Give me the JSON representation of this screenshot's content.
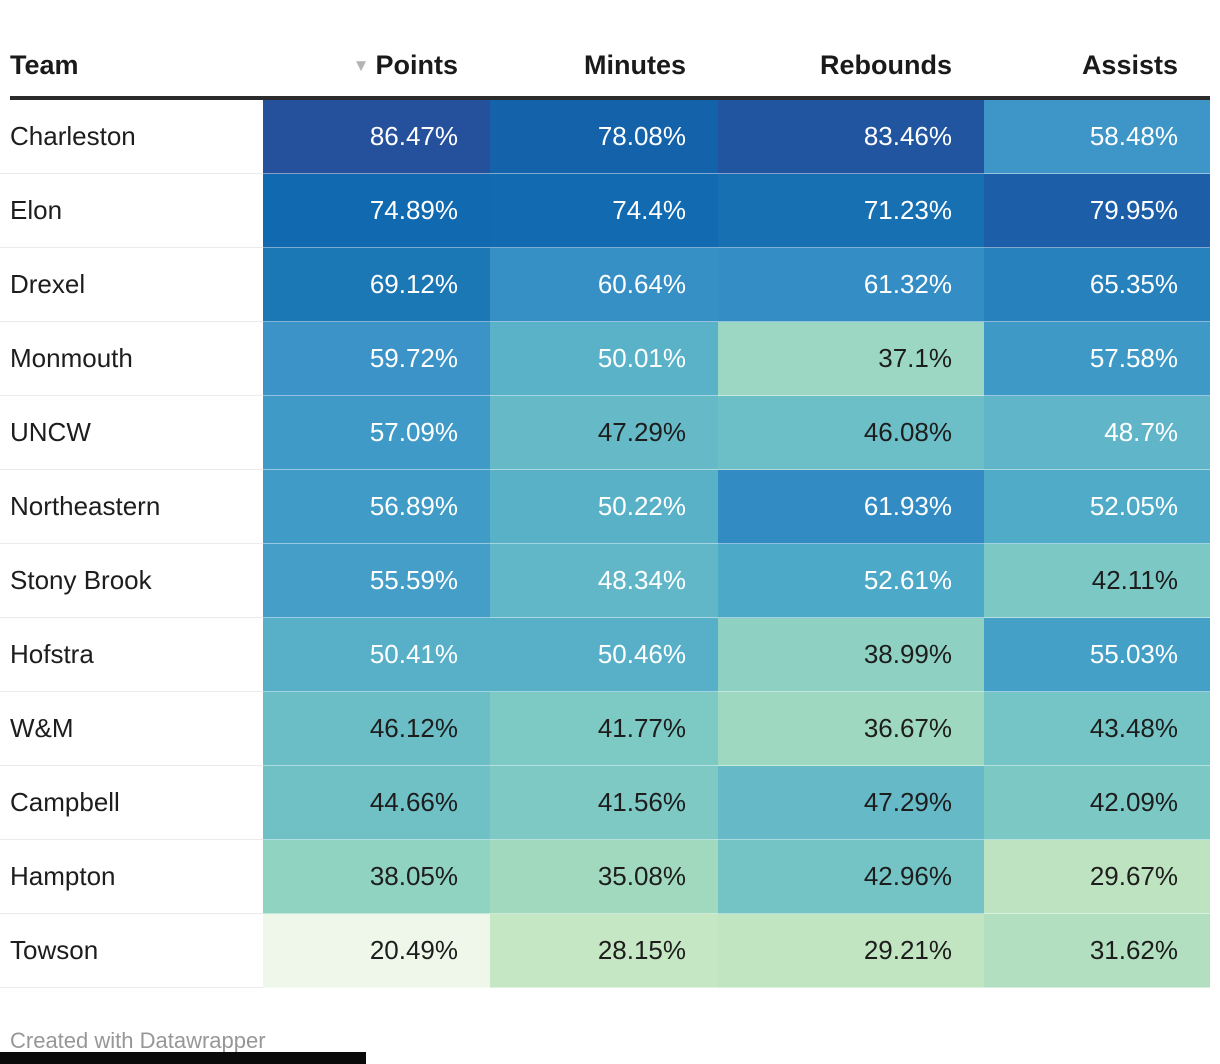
{
  "table": {
    "columns": [
      {
        "key": "team",
        "label": "Team",
        "sorted": false
      },
      {
        "key": "points",
        "label": "Points",
        "sorted": true
      },
      {
        "key": "minutes",
        "label": "Minutes",
        "sorted": false
      },
      {
        "key": "rebounds",
        "label": "Rebounds",
        "sorted": false
      },
      {
        "key": "assists",
        "label": "Assists",
        "sorted": false
      }
    ],
    "sort_icon": "sort-descending-triangle",
    "sort_icon_glyph": "▼",
    "rows": [
      {
        "team": "Charleston",
        "cells": [
          {
            "text": "86.47%",
            "bg": "#25509b",
            "fg": "#ffffff"
          },
          {
            "text": "78.08%",
            "bg": "#1463aa",
            "fg": "#ffffff"
          },
          {
            "text": "83.46%",
            "bg": "#21559f",
            "fg": "#ffffff"
          },
          {
            "text": "58.48%",
            "bg": "#3d96c7",
            "fg": "#ffffff"
          }
        ]
      },
      {
        "team": "Elon",
        "cells": [
          {
            "text": "74.89%",
            "bg": "#1169af",
            "fg": "#ffffff"
          },
          {
            "text": "74.4%",
            "bg": "#126ab0",
            "fg": "#ffffff"
          },
          {
            "text": "71.23%",
            "bg": "#1770b2",
            "fg": "#ffffff"
          },
          {
            "text": "79.95%",
            "bg": "#1c5ea7",
            "fg": "#ffffff"
          }
        ]
      },
      {
        "team": "Drexel",
        "cells": [
          {
            "text": "69.12%",
            "bg": "#1c77b5",
            "fg": "#ffffff"
          },
          {
            "text": "60.64%",
            "bg": "#3790c5",
            "fg": "#ffffff"
          },
          {
            "text": "61.32%",
            "bg": "#348dc4",
            "fg": "#ffffff"
          },
          {
            "text": "65.35%",
            "bg": "#2781bc",
            "fg": "#ffffff"
          }
        ]
      },
      {
        "team": "Monmouth",
        "cells": [
          {
            "text": "59.72%",
            "bg": "#3b93c7",
            "fg": "#ffffff"
          },
          {
            "text": "50.01%",
            "bg": "#5ab2c8",
            "fg": "#ffffff"
          },
          {
            "text": "37.1%",
            "bg": "#9bd7c2",
            "fg": "#1d1d1d"
          },
          {
            "text": "57.58%",
            "bg": "#3f99c7",
            "fg": "#ffffff"
          }
        ]
      },
      {
        "team": "UNCW",
        "cells": [
          {
            "text": "57.09%",
            "bg": "#409ac7",
            "fg": "#ffffff"
          },
          {
            "text": "47.29%",
            "bg": "#66bac7",
            "fg": "#1d1d1d"
          },
          {
            "text": "46.08%",
            "bg": "#6cbec7",
            "fg": "#1d1d1d"
          },
          {
            "text": "48.7%",
            "bg": "#60b6c8",
            "fg": "#ffffff"
          }
        ]
      },
      {
        "team": "Northeastern",
        "cells": [
          {
            "text": "56.89%",
            "bg": "#419bc7",
            "fg": "#ffffff"
          },
          {
            "text": "50.22%",
            "bg": "#59b1c8",
            "fg": "#ffffff"
          },
          {
            "text": "61.93%",
            "bg": "#328cc3",
            "fg": "#ffffff"
          },
          {
            "text": "52.05%",
            "bg": "#50abc8",
            "fg": "#ffffff"
          }
        ]
      },
      {
        "team": "Stony Brook",
        "cells": [
          {
            "text": "55.59%",
            "bg": "#449ec8",
            "fg": "#ffffff"
          },
          {
            "text": "48.34%",
            "bg": "#61b7c8",
            "fg": "#ffffff"
          },
          {
            "text": "52.61%",
            "bg": "#4da9c8",
            "fg": "#ffffff"
          },
          {
            "text": "42.11%",
            "bg": "#7cc8c5",
            "fg": "#1d1d1d"
          }
        ]
      },
      {
        "team": "Hofstra",
        "cells": [
          {
            "text": "50.41%",
            "bg": "#57b0c8",
            "fg": "#ffffff"
          },
          {
            "text": "50.46%",
            "bg": "#57b0c8",
            "fg": "#ffffff"
          },
          {
            "text": "38.99%",
            "bg": "#8ed1c2",
            "fg": "#1d1d1d"
          },
          {
            "text": "55.03%",
            "bg": "#45a0c8",
            "fg": "#ffffff"
          }
        ]
      },
      {
        "team": "W&M",
        "cells": [
          {
            "text": "46.12%",
            "bg": "#6bbdc6",
            "fg": "#1d1d1d"
          },
          {
            "text": "41.77%",
            "bg": "#7dc9c4",
            "fg": "#1d1d1d"
          },
          {
            "text": "36.67%",
            "bg": "#9fd8c1",
            "fg": "#1d1d1d"
          },
          {
            "text": "43.48%",
            "bg": "#76c5c6",
            "fg": "#1d1d1d"
          }
        ]
      },
      {
        "team": "Campbell",
        "cells": [
          {
            "text": "44.66%",
            "bg": "#70c1c6",
            "fg": "#1d1d1d"
          },
          {
            "text": "41.56%",
            "bg": "#7ec9c4",
            "fg": "#1d1d1d"
          },
          {
            "text": "47.29%",
            "bg": "#66bac7",
            "fg": "#1d1d1d"
          },
          {
            "text": "42.09%",
            "bg": "#7cc8c5",
            "fg": "#1d1d1d"
          }
        ]
      },
      {
        "team": "Hampton",
        "cells": [
          {
            "text": "38.05%",
            "bg": "#90d3c0",
            "fg": "#1d1d1d"
          },
          {
            "text": "35.08%",
            "bg": "#a1d9bf",
            "fg": "#1d1d1d"
          },
          {
            "text": "42.96%",
            "bg": "#74c4c6",
            "fg": "#1d1d1d"
          },
          {
            "text": "29.67%",
            "bg": "#bee3c0",
            "fg": "#1d1d1d"
          }
        ]
      },
      {
        "team": "Towson",
        "cells": [
          {
            "text": "20.49%",
            "bg": "#eef7ea",
            "fg": "#1d1d1d"
          },
          {
            "text": "28.15%",
            "bg": "#c6e7c3",
            "fg": "#1d1d1d"
          },
          {
            "text": "29.21%",
            "bg": "#c1e4c1",
            "fg": "#1d1d1d"
          },
          {
            "text": "31.62%",
            "bg": "#b2dfbf",
            "fg": "#1d1d1d"
          }
        ]
      }
    ]
  },
  "footer": {
    "credit": "Created with Datawrapper"
  },
  "colors": {
    "heat_low": "#eef7ea",
    "heat_mid": "#7bccc4",
    "heat_high": "#25509b",
    "header_rule": "#2b2b2b",
    "sort_arrow": "#b4b4b4",
    "credit_text": "#979797"
  },
  "chart_data": {
    "type": "heatmap",
    "title": "",
    "columns": [
      "Points",
      "Minutes",
      "Rebounds",
      "Assists"
    ],
    "rows": [
      "Charleston",
      "Elon",
      "Drexel",
      "Monmouth",
      "UNCW",
      "Northeastern",
      "Stony Brook",
      "Hofstra",
      "W&M",
      "Campbell",
      "Hampton",
      "Towson"
    ],
    "values": [
      [
        86.47,
        78.08,
        83.46,
        58.48
      ],
      [
        74.89,
        74.4,
        71.23,
        79.95
      ],
      [
        69.12,
        60.64,
        61.32,
        65.35
      ],
      [
        59.72,
        50.01,
        37.1,
        57.58
      ],
      [
        57.09,
        47.29,
        46.08,
        48.7
      ],
      [
        56.89,
        50.22,
        61.93,
        52.05
      ],
      [
        55.59,
        48.34,
        52.61,
        42.11
      ],
      [
        50.41,
        50.46,
        38.99,
        55.03
      ],
      [
        46.12,
        41.77,
        36.67,
        43.48
      ],
      [
        44.66,
        41.56,
        47.29,
        42.09
      ],
      [
        38.05,
        35.08,
        42.96,
        29.67
      ],
      [
        20.49,
        28.15,
        29.21,
        31.62
      ]
    ],
    "unit": "%",
    "sorted_by": "Points",
    "sort_direction": "descending",
    "color_scale": "green-to-blue (low=light green, high=dark blue)"
  }
}
